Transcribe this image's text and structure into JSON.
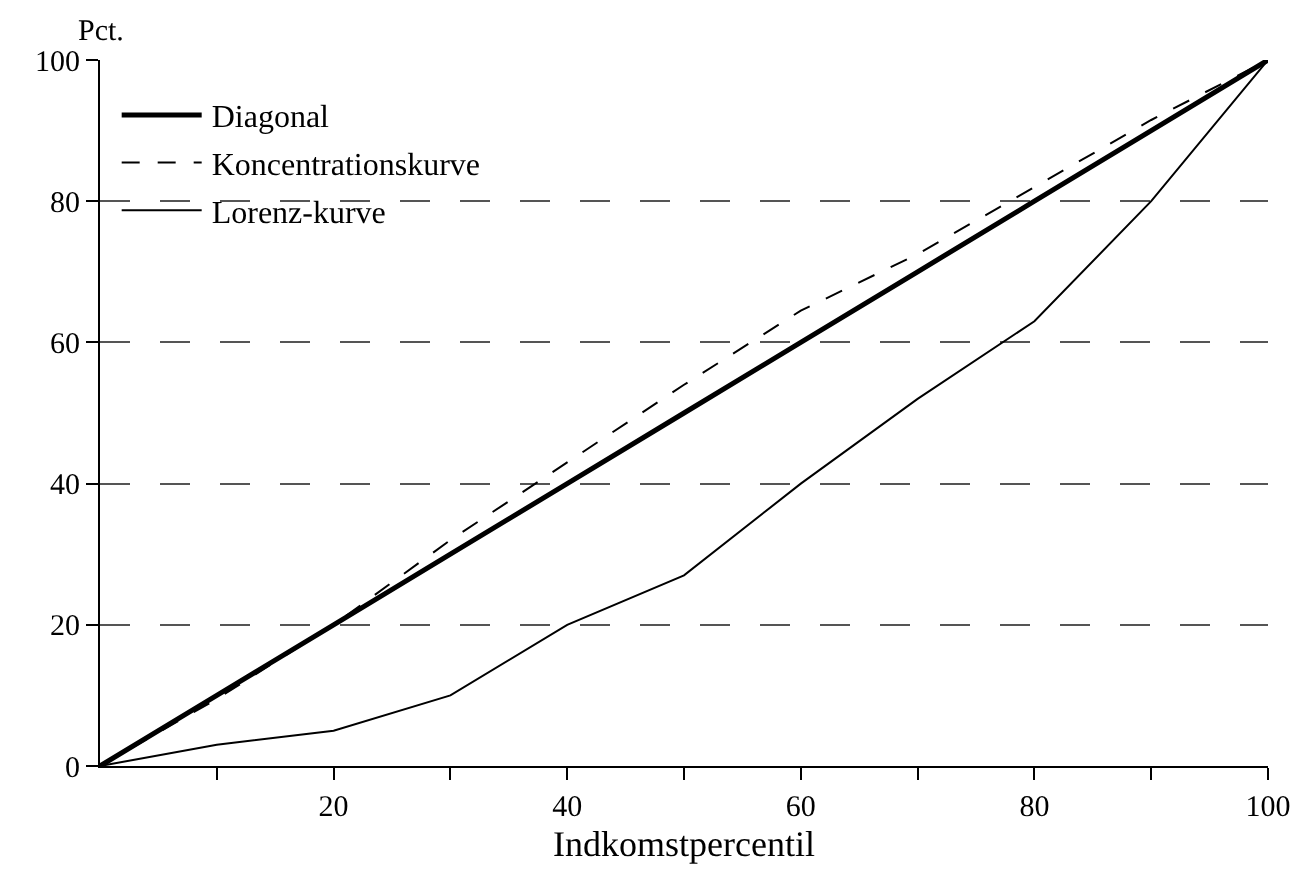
{
  "chart_data": {
    "type": "line",
    "xlabel": "Indkomstpercentil",
    "ylabel": "Pct.",
    "x": [
      0,
      10,
      20,
      30,
      40,
      50,
      60,
      70,
      80,
      90,
      100
    ],
    "series": [
      {
        "name": "Diagonal",
        "color": "#000000",
        "line_style": "solid",
        "values": [
          0,
          10,
          20,
          30,
          40,
          50,
          60,
          70,
          80,
          90,
          100
        ]
      },
      {
        "name": "Koncentrationskurve",
        "color": "#000000",
        "line_style": "dashed",
        "values": [
          0,
          9.5,
          20,
          32,
          43,
          54,
          64.5,
          72.5,
          82,
          91.5,
          100
        ]
      },
      {
        "name": "Lorenz-kurve",
        "color": "#000000",
        "line_style": "solid",
        "values": [
          0,
          3,
          5,
          10,
          20,
          27,
          40,
          52,
          63,
          80,
          100
        ]
      }
    ],
    "xlim": [
      0,
      100
    ],
    "ylim": [
      0,
      100
    ],
    "xticks": [
      {
        "value": 10,
        "label": null
      },
      20,
      {
        "value": 30,
        "label": null
      },
      40,
      {
        "value": 50,
        "label": null
      },
      60,
      {
        "value": 70,
        "label": null
      },
      80,
      {
        "value": 90,
        "label": null
      },
      100
    ],
    "yticks": [
      0,
      20,
      40,
      60,
      80,
      100
    ],
    "grid": "y",
    "legend": "top left",
    "marker": "none"
  }
}
